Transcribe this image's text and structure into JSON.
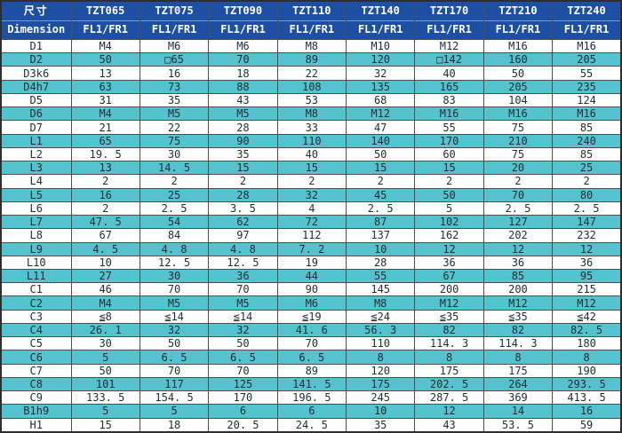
{
  "colors": {
    "header_bg": "#1d50a2",
    "header_text": "#ffffff",
    "header_divider": "#6e8fc9",
    "alt_row_bg": "#55c3ce",
    "row_bg": "#ffffff",
    "border": "#4e4e4e",
    "body_text": "#1d2d35"
  },
  "table": {
    "corner": {
      "zh": "尺寸",
      "en": "Dimension"
    },
    "columns": [
      {
        "model": "TZT065",
        "variant": "FL1/FR1"
      },
      {
        "model": "TZT075",
        "variant": "FL1/FR1"
      },
      {
        "model": "TZT090",
        "variant": "FL1/FR1"
      },
      {
        "model": "TZT110",
        "variant": "FL1/FR1"
      },
      {
        "model": "TZT140",
        "variant": "FL1/FR1"
      },
      {
        "model": "TZT170",
        "variant": "FL1/FR1"
      },
      {
        "model": "TZT210",
        "variant": "FL1/FR1"
      },
      {
        "model": "TZT240",
        "variant": "FL1/FR1"
      }
    ],
    "rows": [
      {
        "label": "D1",
        "values": [
          "M4",
          "M6",
          "M6",
          "M8",
          "M10",
          "M12",
          "M16",
          "M16"
        ]
      },
      {
        "label": "D2",
        "values": [
          "50",
          "□65",
          "70",
          "89",
          "120",
          "□142",
          "160",
          "205"
        ]
      },
      {
        "label": "D3k6",
        "values": [
          "13",
          "16",
          "18",
          "22",
          "32",
          "40",
          "50",
          "55"
        ]
      },
      {
        "label": "D4h7",
        "values": [
          "63",
          "73",
          "88",
          "108",
          "135",
          "165",
          "205",
          "235"
        ]
      },
      {
        "label": "D5",
        "values": [
          "31",
          "35",
          "43",
          "53",
          "68",
          "83",
          "104",
          "124"
        ]
      },
      {
        "label": "D6",
        "values": [
          "M4",
          "M5",
          "M5",
          "M8",
          "M12",
          "M16",
          "M16",
          "M16"
        ]
      },
      {
        "label": "D7",
        "values": [
          "21",
          "22",
          "28",
          "33",
          "47",
          "55",
          "75",
          "85"
        ]
      },
      {
        "label": "L1",
        "values": [
          "65",
          "75",
          "90",
          "110",
          "140",
          "170",
          "210",
          "240"
        ]
      },
      {
        "label": "L2",
        "values": [
          "19. 5",
          "30",
          "35",
          "40",
          "50",
          "60",
          "75",
          "85"
        ]
      },
      {
        "label": "L3",
        "values": [
          "13",
          "14. 5",
          "15",
          "15",
          "15",
          "15",
          "20",
          "25"
        ]
      },
      {
        "label": "L4",
        "values": [
          "2",
          "2",
          "2",
          "2",
          "2",
          "2",
          "2",
          "2"
        ]
      },
      {
        "label": "L5",
        "values": [
          "16",
          "25",
          "28",
          "32",
          "45",
          "50",
          "70",
          "80"
        ]
      },
      {
        "label": "L6",
        "values": [
          "2",
          "2. 5",
          "3. 5",
          "4",
          "2. 5",
          "5",
          "2. 5",
          "2. 5"
        ]
      },
      {
        "label": "L7",
        "values": [
          "47. 5",
          "54",
          "62",
          "72",
          "87",
          "102",
          "127",
          "147"
        ]
      },
      {
        "label": "L8",
        "values": [
          "67",
          "84",
          "97",
          "112",
          "137",
          "162",
          "202",
          "232"
        ]
      },
      {
        "label": "L9",
        "values": [
          "4. 5",
          "4. 8",
          "4. 8",
          "7. 2",
          "10",
          "12",
          "12",
          "12"
        ]
      },
      {
        "label": "L10",
        "values": [
          "10",
          "12. 5",
          "12. 5",
          "19",
          "28",
          "36",
          "36",
          "36"
        ]
      },
      {
        "label": "L11",
        "values": [
          "27",
          "30",
          "36",
          "44",
          "55",
          "67",
          "85",
          "95"
        ]
      },
      {
        "label": "C1",
        "values": [
          "46",
          "70",
          "70",
          "90",
          "145",
          "200",
          "200",
          "215"
        ]
      },
      {
        "label": "C2",
        "values": [
          "M4",
          "M5",
          "M5",
          "M6",
          "M8",
          "M12",
          "M12",
          "M12"
        ]
      },
      {
        "label": "C3",
        "values": [
          "≦8",
          "≦14",
          "≦14",
          "≦19",
          "≦24",
          "≦35",
          "≦35",
          "≦42"
        ]
      },
      {
        "label": "C4",
        "values": [
          "26. 1",
          "32",
          "32",
          "41. 6",
          "56. 3",
          "82",
          "82",
          "82. 5"
        ]
      },
      {
        "label": "C5",
        "values": [
          "30",
          "50",
          "50",
          "70",
          "110",
          "114. 3",
          "114. 3",
          "180"
        ]
      },
      {
        "label": "C6",
        "values": [
          "5",
          "6. 5",
          "6. 5",
          "6. 5",
          "8",
          "8",
          "8",
          "8"
        ]
      },
      {
        "label": "C7",
        "values": [
          "50",
          "70",
          "70",
          "89",
          "120",
          "175",
          "175",
          "190"
        ]
      },
      {
        "label": "C8",
        "values": [
          "101",
          "117",
          "125",
          "141. 5",
          "175",
          "202. 5",
          "264",
          "293. 5"
        ]
      },
      {
        "label": "C9",
        "values": [
          "133. 5",
          "154. 5",
          "170",
          "196. 5",
          "245",
          "287. 5",
          "369",
          "413. 5"
        ]
      },
      {
        "label": "B1h9",
        "values": [
          "5",
          "5",
          "6",
          "6",
          "10",
          "12",
          "14",
          "16"
        ]
      },
      {
        "label": "H1",
        "values": [
          "15",
          "18",
          "20. 5",
          "24. 5",
          "35",
          "43",
          "53. 5",
          "59"
        ]
      }
    ]
  }
}
